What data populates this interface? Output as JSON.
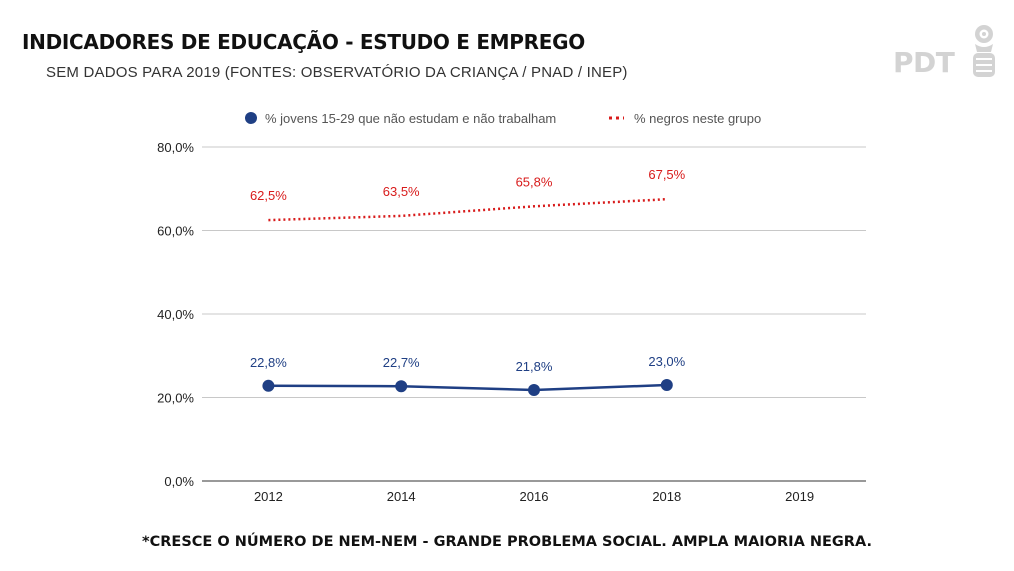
{
  "header": {
    "title": "INDICADORES DE EDUCAÇÃO - ESTUDO E EMPREGO",
    "subtitle": "SEM DADOS PARA 2019 (FONTES: OBSERVATÓRIO DA CRIANÇA / PNAD / INEP)"
  },
  "logo": {
    "text": "PDT",
    "icon": "fist-and-rose-icon",
    "color": "#d3d3d3"
  },
  "footer": {
    "note": "*CRESCE O NÚMERO DE NEM-NEM - GRANDE PROBLEMA SOCIAL. AMPLA MAIORIA NEGRA."
  },
  "chart_data": {
    "type": "line",
    "categories": [
      "2012",
      "2014",
      "2016",
      "2018",
      "2019"
    ],
    "ylim": [
      0,
      80
    ],
    "yticks": [
      "0,0%",
      "20,0%",
      "40,0%",
      "60,0%",
      "80,0%"
    ],
    "grid": true,
    "legend_position": "top",
    "series": [
      {
        "name": "% jovens 15-29 que não estudam e não trabalham",
        "values": [
          22.8,
          22.7,
          21.8,
          23.0,
          null
        ],
        "labels": [
          "22,8%",
          "22,7%",
          "21,8%",
          "23,0%",
          ""
        ],
        "color": "#1f3f84",
        "style": "solid-markers"
      },
      {
        "name": "% negros neste grupo",
        "values": [
          62.5,
          63.5,
          65.8,
          67.5,
          null
        ],
        "labels": [
          "62,5%",
          "63,5%",
          "65,8%",
          "67,5%",
          ""
        ],
        "color": "#d81b1b",
        "style": "dotted"
      }
    ]
  }
}
